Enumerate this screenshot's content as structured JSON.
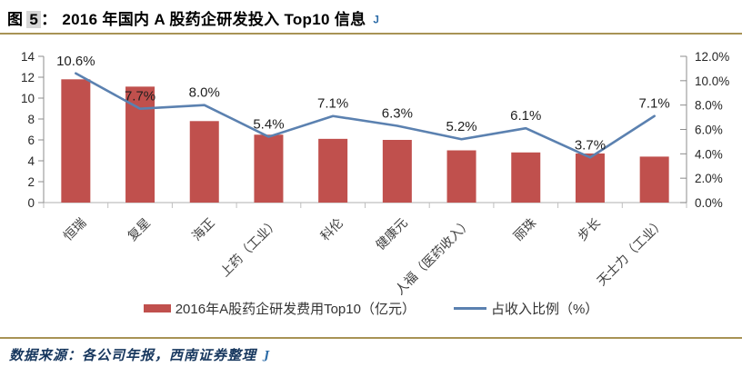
{
  "figure": {
    "label_prefix": "图",
    "label_number": "5",
    "label_separator": "：",
    "title": "2016 年国内 A 股药企研发投入 Top10 信息"
  },
  "icons": {
    "return_mark_glyph": "J"
  },
  "source": {
    "text": "数据来源：各公司年报，西南证券整理"
  },
  "colors": {
    "bar": "#C0504D",
    "line": "#5B81B0",
    "gold_rule": "#A89355",
    "side_axis": "#8C8C8C",
    "bottom_axis": "#BFBFBF",
    "tick_label": "#262626",
    "data_label": "#1F1F1F",
    "category_label": "#3F3F3F",
    "source_text": "#17375E",
    "anchor_blue": "#2E6DA8",
    "number_highlight": "#D6D6D6"
  },
  "chart_data": {
    "type": "bar+line combo (dual axis)",
    "title": "2016 年国内 A 股药企研发投入 Top10 信息",
    "grid": false,
    "legend_position": "bottom",
    "categories": [
      "恒瑞",
      "复星",
      "海正",
      "上药（工业）",
      "科伦",
      "健康元",
      "人福（医药收入）",
      "丽珠",
      "步长",
      "天士力（工业）"
    ],
    "series": [
      {
        "name": "2016年A股药企研发费用Top10（亿元）",
        "type": "bar",
        "axis": "left",
        "values": [
          11.8,
          11.1,
          7.8,
          6.5,
          6.1,
          6.0,
          5.0,
          4.8,
          4.7,
          4.4
        ]
      },
      {
        "name": "占收入比例（%）",
        "type": "line",
        "axis": "right",
        "values": [
          10.6,
          7.7,
          8.0,
          5.4,
          7.1,
          6.3,
          5.2,
          6.1,
          3.7,
          7.1
        ],
        "point_labels": [
          "10.6%",
          "7.7%",
          "8.0%",
          "5.4%",
          "7.1%",
          "6.3%",
          "5.2%",
          "6.1%",
          "3.7%",
          "7.1%"
        ]
      }
    ],
    "left_axis": {
      "min": 0,
      "max": 14,
      "step": 2,
      "tick_labels": [
        "0",
        "2",
        "4",
        "6",
        "8",
        "10",
        "12",
        "14"
      ]
    },
    "right_axis": {
      "min": 0,
      "max": 12,
      "step": 2,
      "tick_labels": [
        "0.0%",
        "2.0%",
        "4.0%",
        "6.0%",
        "8.0%",
        "10.0%",
        "12.0%"
      ]
    }
  }
}
